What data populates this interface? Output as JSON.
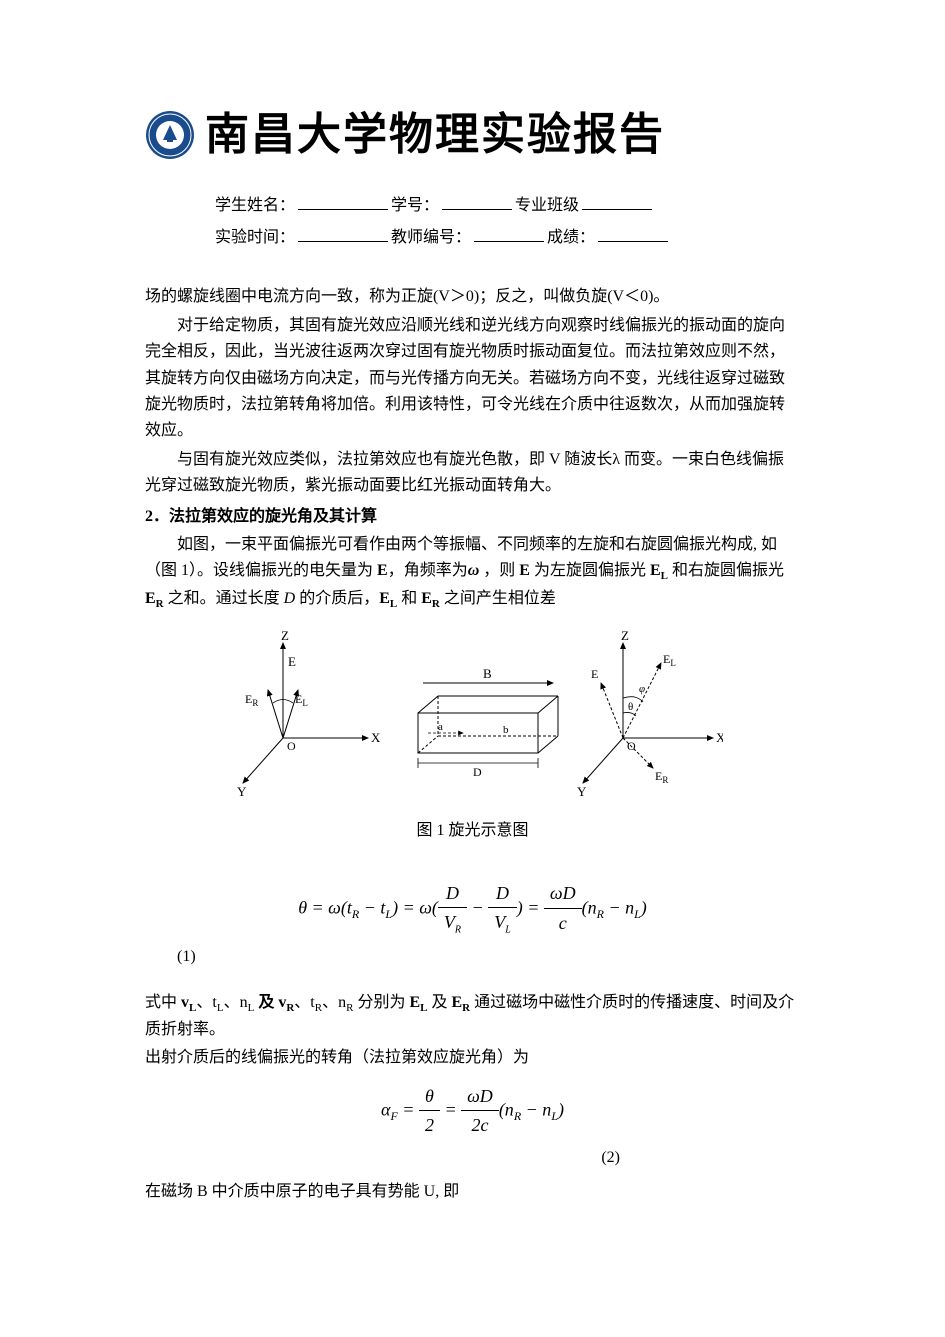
{
  "header": {
    "title": "南昌大学物理实验报告",
    "logo_bg_color": "#1a4b8c",
    "logo_ring_color": "#ffffff"
  },
  "info": {
    "line1_label1": "学生姓名：",
    "line1_label2": "学号：",
    "line1_label3": "专业班级",
    "line2_label1": "实验时间：",
    "line2_label2": "教师编号：",
    "line2_label3": "成绩："
  },
  "body": {
    "p1": "场的螺旋线圈中电流方向一致，称为正旋(V＞0)；反之，叫做负旋(V＜0)。",
    "p2": "对于给定物质，其固有旋光效应沿顺光线和逆光线方向观察时线偏振光的振动面的旋向完全相反，因此，当光波往返两次穿过固有旋光物质时振动面复位。而法拉第效应则不然，其旋转方向仅由磁场方向决定，而与光传播方向无关。若磁场方向不变，光线往返穿过磁致旋光物质时，法拉第转角将加倍。利用该特性，可令光线在介质中往返数次，从而加强旋转效应。",
    "p3": "与固有旋光效应类似，法拉第效应也有旋光色散，即 V 随波长λ 而变。一束白色线偏振光穿过磁致旋光物质，紫光振动面要比红光振动面转角大。",
    "section2_title": "2．法拉第效应的旋光角及其计算",
    "p4_a": "如图，一束平面偏振光可看作由两个等振幅、不同频率的左旋和右旋圆偏振光构成, 如（图 1）。设线偏振光的电矢量为 ",
    "p4_b": "，角频率为",
    "p4_c": " ，则 ",
    "p4_d": " 为左旋圆偏振光 ",
    "p4_e": " 和右旋圆偏振光 ",
    "p4_f": " 之和。通过长度 ",
    "p4_g": " 的介质后，",
    "p4_h": " 和 ",
    "p4_i": " 之间产生相位差",
    "E": "E",
    "EL": "E",
    "EL_sub": "L",
    "ER": "E",
    "ER_sub": "R",
    "omega": "ω",
    "D": "D"
  },
  "figure": {
    "caption": "图 1   旋光示意图",
    "labels": {
      "Z": "Z",
      "X": "X",
      "Y": "Y",
      "O": "O",
      "E": "E",
      "EL": "E",
      "EL_sub": "L",
      "ER": "E",
      "ER_sub": "R",
      "B": "B",
      "D": "D",
      "a": "a",
      "b": "b",
      "theta": "θ",
      "phi": "φ"
    },
    "stroke_color": "#000000",
    "stroke_width": 1
  },
  "equations": {
    "eq1_html": "θ = ω(t<sub style='font-size:12px'>R</sub> − t<sub style='font-size:12px'>L</sub>) = ω(<span style='display:inline-block;vertical-align:middle;text-align:center;'><span style='display:block;border-bottom:1px solid #000;padding:0 6px;'>D</span><span style='display:block;padding:0 6px;'>V<sub style='font-size:10px'>R</sub></span></span> − <span style='display:inline-block;vertical-align:middle;text-align:center;'><span style='display:block;border-bottom:1px solid #000;padding:0 6px;'>D</span><span style='display:block;padding:0 6px;'>V<sub style='font-size:10px'>L</sub></span></span>) = <span style='display:inline-block;vertical-align:middle;text-align:center;'><span style='display:block;border-bottom:1px solid #000;padding:0 6px;'>ωD</span><span style='display:block;padding:0 6px;'>c</span></span>(n<sub style='font-size:12px'>R</sub> − n<sub style='font-size:12px'>L</sub>)",
    "eq1_num": "(1)",
    "eq2_html": "α<sub style='font-size:12px'>F</sub> = <span style='display:inline-block;vertical-align:middle;text-align:center;'><span style='display:block;border-bottom:1px solid #000;padding:0 6px;'>θ</span><span style='display:block;padding:0 6px;'>2</span></span> = <span style='display:inline-block;vertical-align:middle;text-align:center;'><span style='display:block;border-bottom:1px solid #000;padding:0 6px;'>ωD</span><span style='display:block;padding:0 6px;'>2c</span></span>(n<sub style='font-size:12px'>R</sub> − n<sub style='font-size:12px'>L</sub>)",
    "eq2_num": "(2)"
  },
  "body2": {
    "p5_a": "式中 ",
    "vL": "v",
    "vL_sub": "L",
    "tL": "t",
    "tL_sub": "L",
    "nL": "n",
    "nL_sub": "L",
    "and": " 及 ",
    "vR": "v",
    "vR_sub": "R",
    "tR": "t",
    "tR_sub": "R",
    "nR": "n",
    "nR_sub": "R",
    "p5_b": " 分别为 ",
    "p5_c": " 及 ",
    "p5_d": " 通过磁场中磁性介质时的传播速度、时间及介质折射率。",
    "p6": "出射介质后的线偏振光的转角（法拉第效应旋光角）为",
    "p7": "在磁场 B 中介质中原子的电子具有势能 U, 即",
    "sep": "、"
  }
}
